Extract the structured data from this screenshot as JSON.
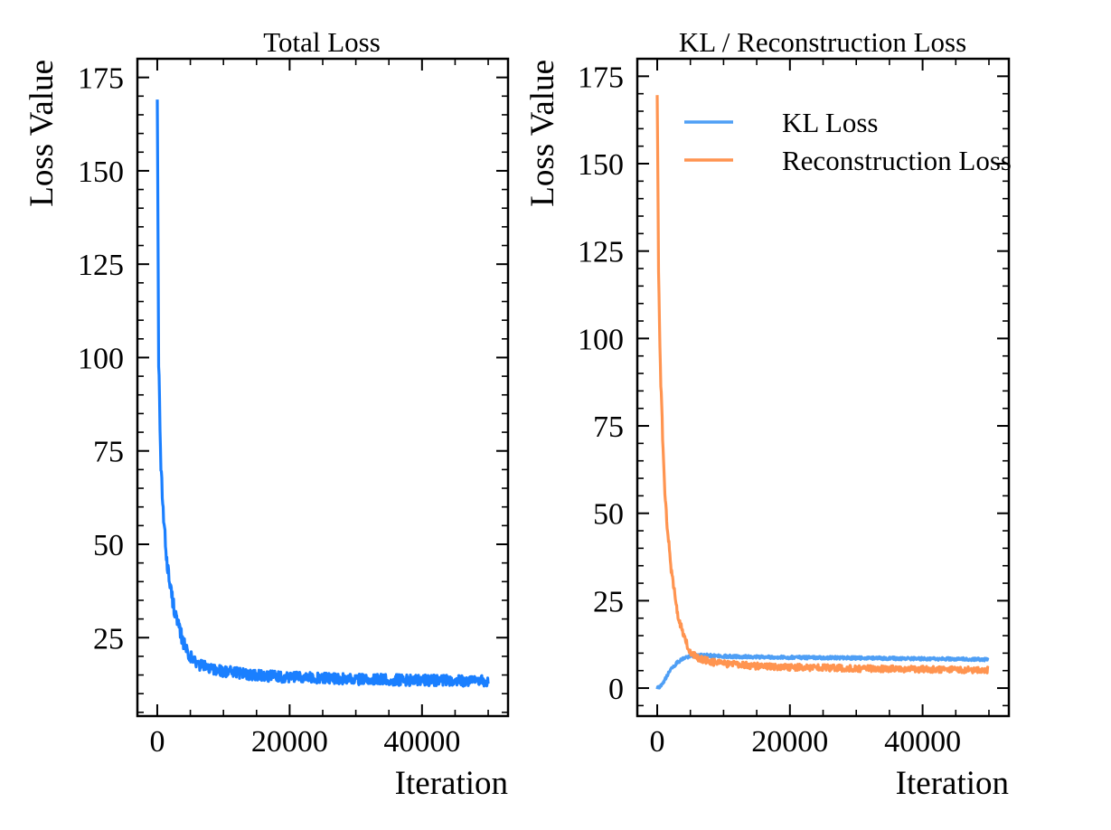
{
  "chart_data": [
    {
      "type": "line",
      "title": "Total Loss",
      "xlabel": "Iteration",
      "ylabel": "Loss Value",
      "xlim": [
        -3000,
        53000
      ],
      "ylim": [
        4,
        180
      ],
      "xticks": [
        0,
        20000,
        40000
      ],
      "xtick_labels": [
        "0",
        "20000",
        "40000"
      ],
      "yticks": [
        25,
        50,
        75,
        100,
        125,
        150,
        175
      ],
      "ytick_labels": [
        "25",
        "50",
        "75",
        "100",
        "125",
        "150",
        "175"
      ],
      "grid": false,
      "legend": "none",
      "series": [
        {
          "color": "#1a7fff",
          "x": [
            0,
            200,
            500,
            1000,
            1500,
            2000,
            3000,
            4000,
            5000,
            6000,
            8000,
            10000,
            15000,
            20000,
            25000,
            30000,
            35000,
            40000,
            45000,
            50000
          ],
          "y": [
            171,
            100,
            72,
            55,
            45,
            38,
            29,
            23.5,
            20,
            18,
            16.8,
            16,
            15,
            14.4,
            14.1,
            13.9,
            13.7,
            13.6,
            13.5,
            13.4
          ],
          "noise": 1.1
        }
      ]
    },
    {
      "type": "line",
      "title": "KL / Reconstruction Loss",
      "xlabel": "Iteration",
      "ylabel": "Loss Value",
      "xlim": [
        -3000,
        53000
      ],
      "ylim": [
        -8,
        180
      ],
      "xticks": [
        0,
        20000,
        40000
      ],
      "xtick_labels": [
        "0",
        "20000",
        "40000"
      ],
      "yticks": [
        0,
        25,
        50,
        75,
        100,
        125,
        150,
        175
      ],
      "ytick_labels": [
        "0",
        "25",
        "50",
        "75",
        "100",
        "125",
        "150",
        "175"
      ],
      "grid": false,
      "legend": "top-right",
      "series": [
        {
          "name": "KL Loss",
          "color": "#4f9ff5",
          "x": [
            0,
            500,
            1000,
            1500,
            2000,
            3000,
            4000,
            5000,
            6000,
            7000,
            8000,
            10000,
            15000,
            20000,
            25000,
            30000,
            35000,
            40000,
            45000,
            50000
          ],
          "y": [
            0,
            0.5,
            1.8,
            3.6,
            5.2,
            7.3,
            8.5,
            9.2,
            9.4,
            9.4,
            9.3,
            9.1,
            8.9,
            8.8,
            8.7,
            8.6,
            8.5,
            8.4,
            8.3,
            8.2
          ],
          "noise": 0.35
        },
        {
          "name": "Reconstruction Loss",
          "color": "#ff9450",
          "x": [
            0,
            200,
            500,
            1000,
            1500,
            2000,
            3000,
            4000,
            5000,
            6000,
            8000,
            10000,
            15000,
            20000,
            25000,
            30000,
            35000,
            40000,
            45000,
            50000
          ],
          "y": [
            171,
            120,
            90,
            62,
            46,
            36,
            22,
            14.5,
            10.5,
            8.8,
            7.5,
            7,
            6.3,
            6,
            5.8,
            5.6,
            5.5,
            5.4,
            5.3,
            5.2
          ],
          "noise": 0.8
        }
      ]
    }
  ]
}
